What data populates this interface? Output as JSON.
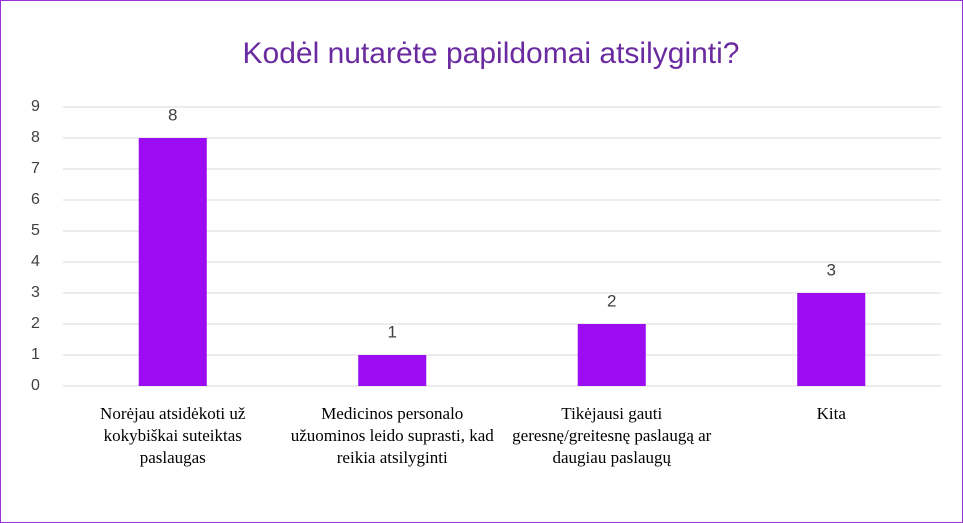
{
  "chart_data": {
    "type": "bar",
    "title": "Kodėl nutarėte papildomai atsilyginti?",
    "categories": [
      "Norėjau atsidėkoti už kokybiškai suteiktas paslaugas",
      "Medicinos personalo užuominos leido suprasti, kad reikia atsilyginti",
      "Tikėjausi gauti geresnę/greitesnę paslaugą ar daugiau paslaugų",
      "Kita"
    ],
    "values": [
      8,
      1,
      2,
      3
    ],
    "color": "#9b0cf2",
    "ylim": [
      0,
      9
    ],
    "yticks": [
      0,
      1,
      2,
      3,
      4,
      5,
      6,
      7,
      8,
      9
    ],
    "grid": true
  }
}
